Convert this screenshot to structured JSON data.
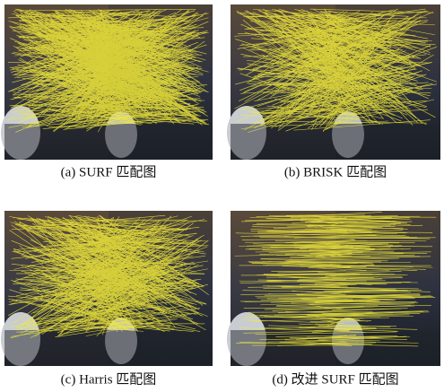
{
  "figure": {
    "panels": [
      {
        "caption": "(a) SURF 匹配图"
      },
      {
        "caption": "(b) BRISK 匹配图"
      },
      {
        "caption": "(c) Harris 匹配图"
      },
      {
        "caption": "(d) 改进 SURF 匹配图"
      }
    ]
  }
}
